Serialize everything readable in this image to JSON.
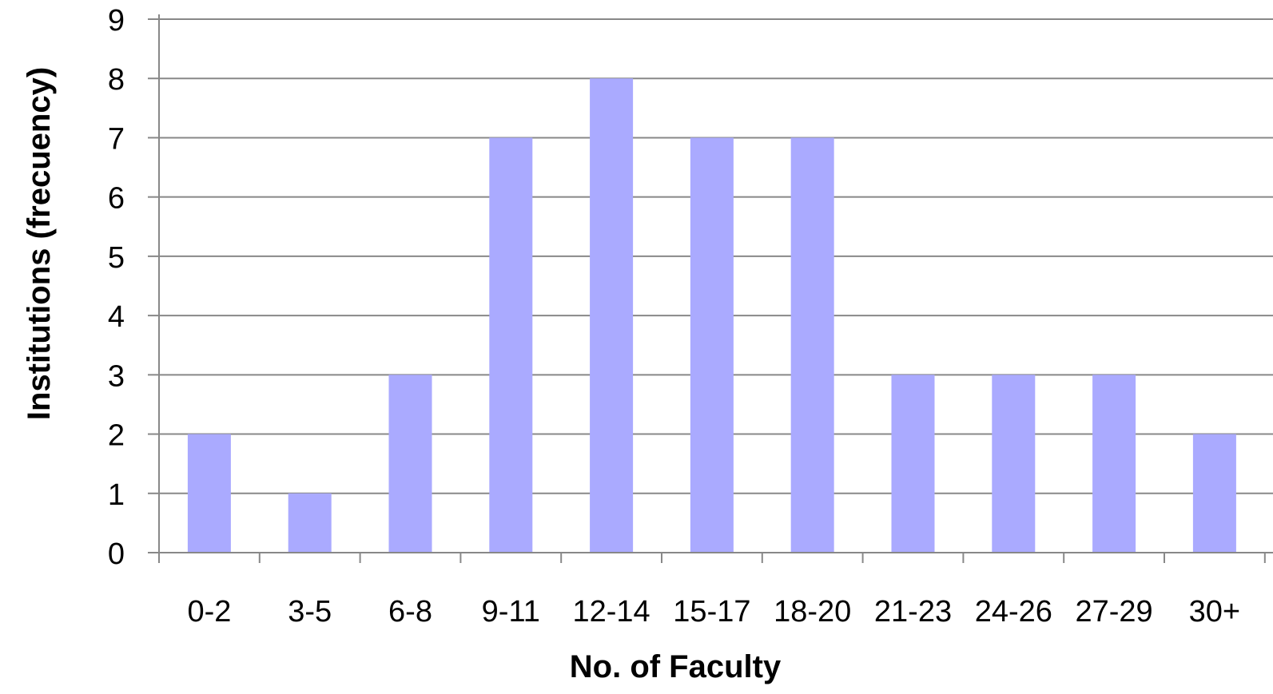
{
  "chart_data": {
    "type": "bar",
    "categories": [
      "0-2",
      "3-5",
      "6-8",
      "9-11",
      "12-14",
      "15-17",
      "18-20",
      "21-23",
      "24-26",
      "27-29",
      "30+"
    ],
    "values": [
      2,
      1,
      3,
      7,
      8,
      7,
      7,
      3,
      3,
      3,
      2
    ],
    "xlabel": "No. of Faculty",
    "ylabel": "Institutions (frecuency)",
    "ylim": [
      0,
      9
    ],
    "yticks": [
      0,
      1,
      2,
      3,
      4,
      5,
      6,
      7,
      8,
      9
    ],
    "grid": true,
    "legend": "none",
    "colors": {
      "bar": "#aaaaff",
      "grid": "#888888",
      "axis": "#888888"
    }
  }
}
